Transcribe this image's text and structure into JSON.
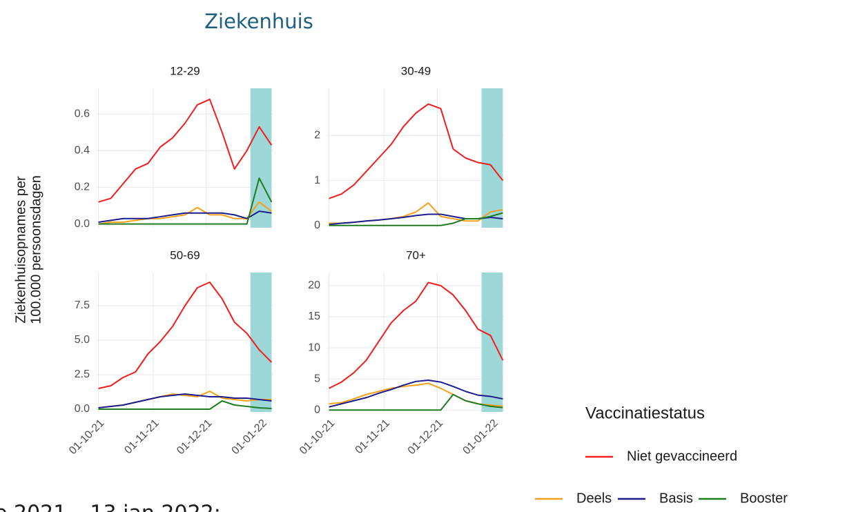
{
  "title": "Ziekenhuis",
  "y_label": [
    "Ziekenhuisopnames per",
    "100.000 persoonsdagen"
  ],
  "footer": "e 2021 – 13 jan 2022:",
  "legend": {
    "title": "Vaccinatiestatus",
    "items": [
      {
        "name": "Niet gevaccineerd",
        "color": "#f21c1c"
      },
      {
        "name": "Deels",
        "color": "#f5a01a"
      },
      {
        "name": "Basis",
        "color": "#1b1b8f"
      },
      {
        "name": "Booster",
        "color": "#1e7b1e"
      }
    ]
  },
  "chart_data": [
    {
      "type": "line",
      "title": "12-29",
      "x": [
        "2021-10-01",
        "2021-10-08",
        "2021-10-15",
        "2021-10-22",
        "2021-10-29",
        "2021-11-05",
        "2021-11-12",
        "2021-11-19",
        "2021-11-26",
        "2021-12-03",
        "2021-12-10",
        "2021-12-17",
        "2021-12-24",
        "2021-12-31",
        "2022-01-07"
      ],
      "xlim": [
        "2021-09-30",
        "2022-01-08"
      ],
      "xticks": [
        "2021-10-01",
        "2021-11-01",
        "2021-12-01",
        "2022-01-01"
      ],
      "ylim": [
        -0.02,
        0.74
      ],
      "yticks": [
        {
          "value": 0,
          "label": "0.0"
        },
        {
          "value": 0.2,
          "label": "0.2"
        },
        {
          "value": 0.4,
          "label": "0.4"
        },
        {
          "value": 0.6,
          "label": "0.6"
        }
      ],
      "highlight": [
        "2021-12-26",
        "2022-01-07"
      ],
      "series": [
        {
          "values": [
            0.12,
            0.14,
            0.22,
            0.3,
            0.33,
            0.42,
            0.47,
            0.55,
            0.65,
            0.68,
            0.5,
            0.3,
            0.4,
            0.53,
            0.43
          ]
        },
        {
          "values": [
            0,
            0.01,
            0.01,
            0.02,
            0.03,
            0.03,
            0.04,
            0.05,
            0.09,
            0.05,
            0.05,
            0.03,
            0.03,
            0.12,
            0.07
          ]
        },
        {
          "values": [
            0.01,
            0.02,
            0.03,
            0.03,
            0.03,
            0.04,
            0.05,
            0.06,
            0.06,
            0.06,
            0.06,
            0.05,
            0.03,
            0.07,
            0.06
          ]
        },
        {
          "values": [
            0,
            0,
            0,
            0,
            0,
            0,
            0,
            0,
            0,
            0,
            0,
            0,
            0,
            0.25,
            0.12
          ]
        }
      ]
    },
    {
      "type": "line",
      "title": "30-49",
      "x": [
        "2021-10-01",
        "2021-10-08",
        "2021-10-15",
        "2021-10-22",
        "2021-10-29",
        "2021-11-05",
        "2021-11-12",
        "2021-11-19",
        "2021-11-26",
        "2021-12-03",
        "2021-12-10",
        "2021-12-17",
        "2021-12-24",
        "2021-12-31",
        "2022-01-07"
      ],
      "xlim": [
        "2021-09-30",
        "2022-01-08"
      ],
      "xticks": [
        "2021-10-01",
        "2021-11-01",
        "2021-12-01",
        "2022-01-01"
      ],
      "ylim": [
        -0.05,
        3.05
      ],
      "yticks": [
        0,
        1,
        2
      ],
      "highlight": [
        "2021-12-26",
        "2022-01-07"
      ],
      "series": [
        {
          "values": [
            0.6,
            0.7,
            0.9,
            1.2,
            1.5,
            1.8,
            2.2,
            2.5,
            2.7,
            2.6,
            1.7,
            1.5,
            1.4,
            1.35,
            1.0
          ]
        },
        {
          "values": [
            0.05,
            0.05,
            0.07,
            0.1,
            0.12,
            0.15,
            0.2,
            0.3,
            0.5,
            0.2,
            0.15,
            0.1,
            0.1,
            0.3,
            0.35
          ]
        },
        {
          "values": [
            0.02,
            0.05,
            0.07,
            0.1,
            0.12,
            0.15,
            0.18,
            0.22,
            0.25,
            0.25,
            0.2,
            0.15,
            0.15,
            0.18,
            0.15
          ]
        },
        {
          "values": [
            0,
            0,
            0,
            0,
            0,
            0,
            0,
            0,
            0,
            0,
            0.05,
            0.15,
            0.15,
            0.2,
            0.28
          ]
        }
      ]
    },
    {
      "type": "line",
      "title": "50-69",
      "x": [
        "2021-10-01",
        "2021-10-08",
        "2021-10-15",
        "2021-10-22",
        "2021-10-29",
        "2021-11-05",
        "2021-11-12",
        "2021-11-19",
        "2021-11-26",
        "2021-12-03",
        "2021-12-10",
        "2021-12-17",
        "2021-12-24",
        "2021-12-31",
        "2022-01-07"
      ],
      "xlim": [
        "2021-09-30",
        "2022-01-08"
      ],
      "xticks": [
        {
          "value": "2021-10-01",
          "label": "01-10-21"
        },
        {
          "value": "2021-11-01",
          "label": "01-11-21"
        },
        {
          "value": "2021-12-01",
          "label": "01-12-21"
        },
        {
          "value": "2022-01-01",
          "label": "01-01-22"
        }
      ],
      "ylim": [
        -0.2,
        9.9
      ],
      "yticks": [
        {
          "value": 0,
          "label": "0.0"
        },
        2.5,
        {
          "value": 5,
          "label": "5.0"
        },
        7.5
      ],
      "highlight": [
        "2021-12-26",
        "2022-01-07"
      ],
      "series": [
        {
          "values": [
            1.5,
            1.7,
            2.3,
            2.7,
            4.0,
            4.9,
            6.0,
            7.5,
            8.8,
            9.2,
            8.0,
            6.3,
            5.5,
            4.3,
            3.4
          ]
        },
        {
          "values": [
            0.1,
            0.2,
            0.3,
            0.5,
            0.7,
            0.9,
            1.1,
            1.0,
            0.9,
            1.3,
            0.8,
            0.7,
            0.6,
            0.7,
            0.7
          ]
        },
        {
          "values": [
            0.1,
            0.2,
            0.3,
            0.5,
            0.7,
            0.9,
            1.0,
            1.1,
            1.0,
            0.9,
            0.9,
            0.8,
            0.8,
            0.7,
            0.6
          ]
        },
        {
          "values": [
            0,
            0,
            0,
            0,
            0,
            0,
            0,
            0,
            0,
            0,
            0.6,
            0.3,
            0.2,
            0.1,
            0.05
          ]
        }
      ]
    },
    {
      "type": "line",
      "title": "70+",
      "x": [
        "2021-10-01",
        "2021-10-08",
        "2021-10-15",
        "2021-10-22",
        "2021-10-29",
        "2021-11-05",
        "2021-11-12",
        "2021-11-19",
        "2021-11-26",
        "2021-12-03",
        "2021-12-10",
        "2021-12-17",
        "2021-12-24",
        "2021-12-31",
        "2022-01-07"
      ],
      "xlim": [
        "2021-09-30",
        "2022-01-08"
      ],
      "xticks": [
        {
          "value": "2021-10-01",
          "label": "01-10-21"
        },
        {
          "value": "2021-11-01",
          "label": "01-11-21"
        },
        {
          "value": "2021-12-01",
          "label": "01-12-21"
        },
        {
          "value": "2022-01-01",
          "label": "01-01-22"
        }
      ],
      "ylim": [
        -0.3,
        22.1
      ],
      "yticks": [
        0,
        5,
        10,
        15,
        20
      ],
      "highlight": [
        "2021-12-26",
        "2022-01-07"
      ],
      "series": [
        {
          "values": [
            3.5,
            4.5,
            6,
            8,
            11,
            14,
            16,
            17.5,
            20.5,
            20,
            18.5,
            16,
            13,
            12,
            8
          ]
        },
        {
          "values": [
            1,
            1.2,
            1.8,
            2.5,
            3,
            3.5,
            3.8,
            4,
            4.3,
            3.5,
            2.5,
            1.5,
            1.0,
            0.8,
            0.6
          ]
        },
        {
          "values": [
            0.5,
            1,
            1.5,
            2,
            2.7,
            3.3,
            4,
            4.6,
            4.8,
            4.5,
            3.8,
            3,
            2.4,
            2.2,
            1.8
          ]
        },
        {
          "values": [
            0,
            0,
            0,
            0,
            0,
            0,
            0,
            0,
            0,
            0,
            2.5,
            1.5,
            1,
            0.6,
            0.4
          ]
        }
      ]
    }
  ]
}
